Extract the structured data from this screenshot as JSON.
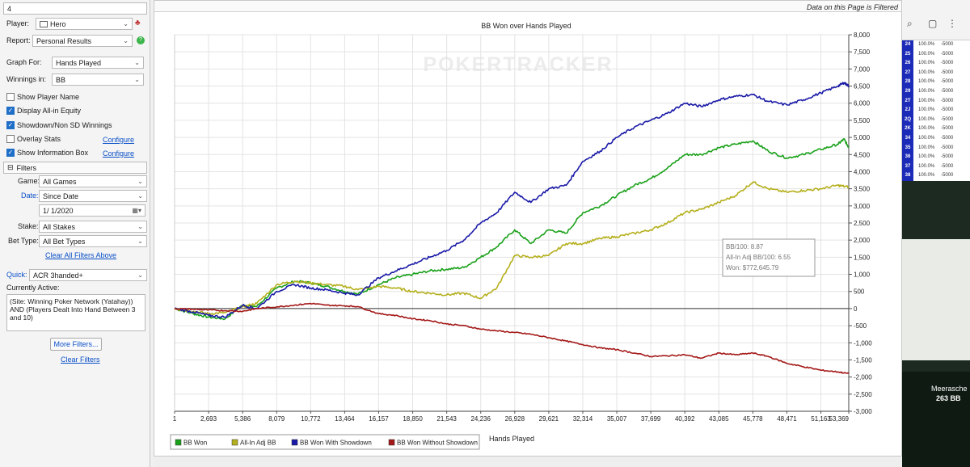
{
  "left_panel": {
    "search_value": "4",
    "player_label": "Player:",
    "player_value": "Hero",
    "report_label": "Report:",
    "report_value": "Personal Results",
    "graph_for_label": "Graph For:",
    "graph_for_value": "Hands Played",
    "winnings_label": "Winnings in:",
    "winnings_value": "BB",
    "checkboxes": [
      {
        "label": "Show Player Name",
        "checked": false
      },
      {
        "label": "Display All-in Equity",
        "checked": true
      },
      {
        "label": "Showdown/Non SD Winnings",
        "checked": true
      },
      {
        "label": "Overlay Stats",
        "checked": false
      },
      {
        "label": "Show Information Box",
        "checked": true
      }
    ],
    "configure_label": "Configure",
    "filters_header": "Filters",
    "filters_toggle": "⊟",
    "game_label": "Game:",
    "game_value": "All Games",
    "date_label": "Date:",
    "date_value": "Since Date",
    "date_input": "1/  1/2020",
    "stake_label": "Stake:",
    "stake_value": "All Stakes",
    "bettype_label": "Bet Type:",
    "bettype_value": "All Bet Types",
    "clear_all_link": "Clear All Filters Above",
    "quick_label": "Quick:",
    "quick_value": "ACR 3handed+",
    "currently_active_label": "Currently Active:",
    "currently_active_text": "(Site: Winning Poker Network (Yatahay)) AND (Players Dealt Into Hand Between 3 and 10)",
    "more_filters_button": "More Filters...",
    "clear_filters_link": "Clear Filters"
  },
  "header": {
    "filtered_note": "Data on this Page is Filtered"
  },
  "chart_data": {
    "type": "line",
    "title": "BB Won over Hands Played",
    "watermark": "POKERTRACKER",
    "xlabel": "Hands Played",
    "ylabel": "",
    "xlim": [
      1,
      53369
    ],
    "ylim": [
      -3000,
      8000
    ],
    "x_ticks": [
      "1",
      "2,693",
      "5,386",
      "8,079",
      "10,772",
      "13,464",
      "16,157",
      "18,850",
      "21,543",
      "24,236",
      "26,928",
      "29,621",
      "32,314",
      "35,007",
      "37,699",
      "40,392",
      "43,085",
      "45,778",
      "48,471",
      "51,163",
      "53,369"
    ],
    "y_ticks": [
      "8,000",
      "7,500",
      "7,000",
      "6,500",
      "6,000",
      "5,500",
      "5,000",
      "4,500",
      "4,000",
      "3,500",
      "3,000",
      "2,500",
      "2,000",
      "1,500",
      "1,000",
      "500",
      "0",
      "-500",
      "-1,000",
      "-1,500",
      "-2,000",
      "-2,500",
      "-3,000"
    ],
    "grid": true,
    "legend_position": "bottom-left",
    "info_box": {
      "line1": "BB/100: 8.87",
      "line2": "All-In Adj BB/100: 6.55",
      "line3": "Won: $772,645.79"
    },
    "series": [
      {
        "name": "BB Won",
        "color": "#1aa11a",
        "points": [
          [
            1,
            0
          ],
          [
            1500,
            -150
          ],
          [
            2693,
            -250
          ],
          [
            4000,
            -300
          ],
          [
            5386,
            100
          ],
          [
            6500,
            60
          ],
          [
            8079,
            600
          ],
          [
            9500,
            800
          ],
          [
            10772,
            750
          ],
          [
            12000,
            650
          ],
          [
            13464,
            500
          ],
          [
            14500,
            420
          ],
          [
            16157,
            700
          ],
          [
            17500,
            900
          ],
          [
            18850,
            1000
          ],
          [
            20200,
            1100
          ],
          [
            21543,
            1150
          ],
          [
            22900,
            1200
          ],
          [
            24236,
            1500
          ],
          [
            25500,
            1800
          ],
          [
            26928,
            2300
          ],
          [
            28200,
            1900
          ],
          [
            29621,
            2300
          ],
          [
            31000,
            2200
          ],
          [
            32314,
            2800
          ],
          [
            33700,
            3000
          ],
          [
            35007,
            3300
          ],
          [
            36400,
            3600
          ],
          [
            37699,
            3800
          ],
          [
            39000,
            4100
          ],
          [
            40392,
            4500
          ],
          [
            41700,
            4500
          ],
          [
            43085,
            4700
          ],
          [
            44400,
            4800
          ],
          [
            45778,
            4900
          ],
          [
            47000,
            4600
          ],
          [
            48471,
            4400
          ],
          [
            49800,
            4500
          ],
          [
            51163,
            4650
          ],
          [
            52500,
            4800
          ],
          [
            53000,
            4950
          ],
          [
            53369,
            4700
          ]
        ]
      },
      {
        "name": "All-In Adj BB",
        "color": "#b5b01e",
        "points": [
          [
            1,
            0
          ],
          [
            1500,
            -80
          ],
          [
            2693,
            -150
          ],
          [
            4000,
            -120
          ],
          [
            5386,
            50
          ],
          [
            6500,
            150
          ],
          [
            8079,
            700
          ],
          [
            9500,
            800
          ],
          [
            10772,
            750
          ],
          [
            12000,
            700
          ],
          [
            13464,
            650
          ],
          [
            14500,
            550
          ],
          [
            16157,
            650
          ],
          [
            17500,
            600
          ],
          [
            18850,
            500
          ],
          [
            20200,
            450
          ],
          [
            21543,
            400
          ],
          [
            22900,
            450
          ],
          [
            24236,
            300
          ],
          [
            25500,
            600
          ],
          [
            26928,
            1550
          ],
          [
            28200,
            1500
          ],
          [
            29621,
            1550
          ],
          [
            31000,
            1900
          ],
          [
            32314,
            1900
          ],
          [
            33700,
            2050
          ],
          [
            35007,
            2100
          ],
          [
            36400,
            2200
          ],
          [
            37699,
            2300
          ],
          [
            39000,
            2500
          ],
          [
            40392,
            2800
          ],
          [
            41700,
            2900
          ],
          [
            43085,
            3100
          ],
          [
            44400,
            3300
          ],
          [
            45778,
            3700
          ],
          [
            47000,
            3500
          ],
          [
            48471,
            3400
          ],
          [
            49800,
            3450
          ],
          [
            51163,
            3500
          ],
          [
            52500,
            3600
          ],
          [
            53369,
            3550
          ]
        ]
      },
      {
        "name": "BB Won With Showdown",
        "color": "#1a1aa8",
        "points": [
          [
            1,
            0
          ],
          [
            1500,
            -100
          ],
          [
            2693,
            -200
          ],
          [
            4000,
            -250
          ],
          [
            5386,
            100
          ],
          [
            6500,
            0
          ],
          [
            8079,
            500
          ],
          [
            9500,
            700
          ],
          [
            10772,
            600
          ],
          [
            12000,
            550
          ],
          [
            13464,
            450
          ],
          [
            14500,
            400
          ],
          [
            16157,
            900
          ],
          [
            17500,
            1100
          ],
          [
            18850,
            1300
          ],
          [
            20200,
            1500
          ],
          [
            21543,
            1700
          ],
          [
            22900,
            2000
          ],
          [
            24236,
            2500
          ],
          [
            25500,
            2800
          ],
          [
            26928,
            3400
          ],
          [
            28200,
            3100
          ],
          [
            29621,
            3500
          ],
          [
            31000,
            3600
          ],
          [
            32314,
            4300
          ],
          [
            33700,
            4600
          ],
          [
            35007,
            5000
          ],
          [
            36400,
            5300
          ],
          [
            37699,
            5500
          ],
          [
            39000,
            5700
          ],
          [
            40392,
            6000
          ],
          [
            41700,
            5900
          ],
          [
            43085,
            6100
          ],
          [
            44400,
            6200
          ],
          [
            45778,
            6250
          ],
          [
            47000,
            6050
          ],
          [
            48471,
            5950
          ],
          [
            49800,
            6100
          ],
          [
            51163,
            6300
          ],
          [
            52500,
            6500
          ],
          [
            53000,
            6600
          ],
          [
            53369,
            6500
          ]
        ]
      },
      {
        "name": "BB Won Without Showdown",
        "color": "#a41818",
        "points": [
          [
            1,
            0
          ],
          [
            1500,
            -20
          ],
          [
            2693,
            -40
          ],
          [
            4000,
            -60
          ],
          [
            5386,
            -80
          ],
          [
            6500,
            0
          ],
          [
            8079,
            50
          ],
          [
            9500,
            100
          ],
          [
            10772,
            150
          ],
          [
            12000,
            100
          ],
          [
            13464,
            80
          ],
          [
            14500,
            60
          ],
          [
            16157,
            -150
          ],
          [
            17500,
            -200
          ],
          [
            18850,
            -300
          ],
          [
            20200,
            -350
          ],
          [
            21543,
            -450
          ],
          [
            22900,
            -500
          ],
          [
            24236,
            -600
          ],
          [
            25500,
            -650
          ],
          [
            26928,
            -700
          ],
          [
            28200,
            -750
          ],
          [
            29621,
            -850
          ],
          [
            31000,
            -950
          ],
          [
            32314,
            -1050
          ],
          [
            33700,
            -1150
          ],
          [
            35007,
            -1200
          ],
          [
            36400,
            -1300
          ],
          [
            37699,
            -1400
          ],
          [
            39000,
            -1380
          ],
          [
            40392,
            -1350
          ],
          [
            41700,
            -1450
          ],
          [
            43085,
            -1300
          ],
          [
            44400,
            -1350
          ],
          [
            45778,
            -1300
          ],
          [
            47000,
            -1400
          ],
          [
            48471,
            -1600
          ],
          [
            49800,
            -1700
          ],
          [
            51163,
            -1800
          ],
          [
            52500,
            -1850
          ],
          [
            53369,
            -1900
          ]
        ]
      }
    ]
  },
  "right_overlay": {
    "stat_rows": [
      {
        "k": "24",
        "v1": "100.0%",
        "v2": "-5000"
      },
      {
        "k": "25",
        "v1": "100.0%",
        "v2": "-5000"
      },
      {
        "k": "26",
        "v1": "100.0%",
        "v2": "-5000"
      },
      {
        "k": "27",
        "v1": "100.0%",
        "v2": "-5000"
      },
      {
        "k": "28",
        "v1": "100.0%",
        "v2": "-5000"
      },
      {
        "k": "29",
        "v1": "100.0%",
        "v2": "-5000"
      },
      {
        "k": "2T",
        "v1": "100.0%",
        "v2": "-5000"
      },
      {
        "k": "2J",
        "v1": "100.0%",
        "v2": "-5000"
      },
      {
        "k": "2Q",
        "v1": "100.0%",
        "v2": "-5000"
      },
      {
        "k": "2K",
        "v1": "100.0%",
        "v2": "-5000"
      },
      {
        "k": "34",
        "v1": "100.0%",
        "v2": "-5000"
      },
      {
        "k": "35",
        "v1": "100.0%",
        "v2": "-5000"
      },
      {
        "k": "36",
        "v1": "100.0%",
        "v2": "-5000"
      },
      {
        "k": "37",
        "v1": "100.0%",
        "v2": "-5000"
      },
      {
        "k": "38",
        "v1": "100.0%",
        "v2": "-5000"
      }
    ],
    "player_name": "Meerasche",
    "player_stack": "263 BB"
  }
}
